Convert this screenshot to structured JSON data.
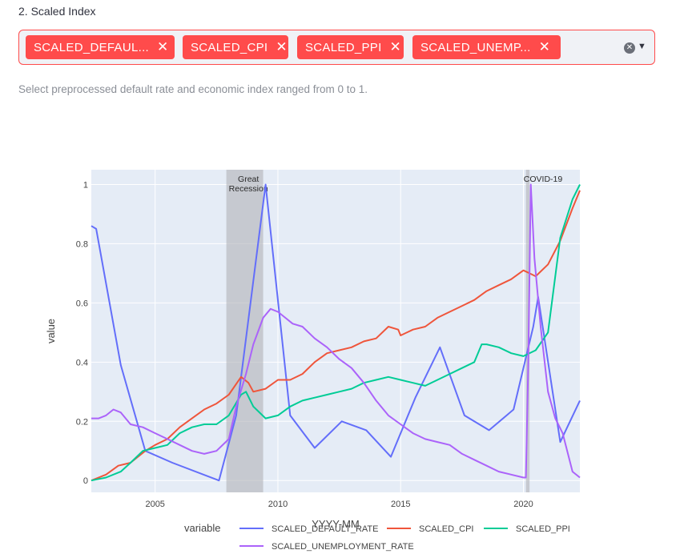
{
  "section_label": "2. Scaled Index",
  "multiselect": {
    "chips": [
      {
        "label": "SCALED_DEFAUL..."
      },
      {
        "label": "SCALED_CPI"
      },
      {
        "label": "SCALED_PPI"
      },
      {
        "label": "SCALED_UNEMP..."
      }
    ],
    "remove_glyph": "✕",
    "clear_glyph": "✕",
    "arrow_glyph": "▼"
  },
  "help_text": "Select preprocessed default rate and economic index ranged from 0 to 1.",
  "colors": {
    "accent": "#ff4b4b",
    "plot_bg": "#e5ecf6",
    "default_rate": "#636efa",
    "cpi": "#ef553b",
    "ppi": "#00cc96",
    "unemployment": "#ab63fa",
    "recession_band": "#b0b3b8"
  },
  "chart_data": {
    "type": "line",
    "xlabel": "YYYY-MM",
    "ylabel": "value",
    "x_ticks": [
      "2005",
      "2010",
      "2015",
      "2020"
    ],
    "y_ticks": [
      "0",
      "0.2",
      "0.4",
      "0.6",
      "0.8",
      "1"
    ],
    "xlim": [
      2002.4,
      2022.3
    ],
    "ylim": [
      -0.04,
      1.05
    ],
    "grid": true,
    "legend_title": "variable",
    "legend_position": "bottom",
    "annotations": [
      {
        "text": "Great\nRecession",
        "x": 2008.8
      },
      {
        "text": "COVID-19",
        "x": 2020.8
      }
    ],
    "bands": [
      {
        "from": 2007.9,
        "to": 2009.4
      },
      {
        "from": 2020.1,
        "to": 2020.25
      }
    ],
    "series": [
      {
        "name": "SCALED_DEFAULT_RATE",
        "color_key": "default_rate",
        "points": [
          [
            2002.4,
            0.86
          ],
          [
            2002.6,
            0.85
          ],
          [
            2003.6,
            0.39
          ],
          [
            2004.6,
            0.1
          ],
          [
            2005.7,
            0.06
          ],
          [
            2007.6,
            0.0
          ],
          [
            2008.3,
            0.22
          ],
          [
            2009.5,
            1.0
          ],
          [
            2010.5,
            0.22
          ],
          [
            2011.5,
            0.11
          ],
          [
            2012.6,
            0.2
          ],
          [
            2013.6,
            0.17
          ],
          [
            2014.6,
            0.08
          ],
          [
            2015.6,
            0.28
          ],
          [
            2016.6,
            0.45
          ],
          [
            2017.6,
            0.22
          ],
          [
            2018.6,
            0.17
          ],
          [
            2019.6,
            0.24
          ],
          [
            2020.4,
            0.52
          ],
          [
            2020.6,
            0.62
          ],
          [
            2021.5,
            0.13
          ],
          [
            2022.3,
            0.27
          ]
        ]
      },
      {
        "name": "SCALED_CPI",
        "color_key": "cpi",
        "points": [
          [
            2002.4,
            0.0
          ],
          [
            2003.0,
            0.02
          ],
          [
            2003.5,
            0.05
          ],
          [
            2004.0,
            0.06
          ],
          [
            2004.6,
            0.1
          ],
          [
            2005.0,
            0.12
          ],
          [
            2005.5,
            0.14
          ],
          [
            2006.0,
            0.18
          ],
          [
            2006.5,
            0.21
          ],
          [
            2007.0,
            0.24
          ],
          [
            2007.5,
            0.26
          ],
          [
            2008.0,
            0.29
          ],
          [
            2008.5,
            0.35
          ],
          [
            2008.8,
            0.33
          ],
          [
            2009.0,
            0.3
          ],
          [
            2009.5,
            0.31
          ],
          [
            2010.0,
            0.34
          ],
          [
            2010.5,
            0.34
          ],
          [
            2011.0,
            0.36
          ],
          [
            2011.5,
            0.4
          ],
          [
            2012.0,
            0.43
          ],
          [
            2012.5,
            0.44
          ],
          [
            2013.0,
            0.45
          ],
          [
            2013.5,
            0.47
          ],
          [
            2014.0,
            0.48
          ],
          [
            2014.5,
            0.52
          ],
          [
            2014.9,
            0.51
          ],
          [
            2015.0,
            0.49
          ],
          [
            2015.5,
            0.51
          ],
          [
            2016.0,
            0.52
          ],
          [
            2016.5,
            0.55
          ],
          [
            2017.0,
            0.57
          ],
          [
            2017.5,
            0.59
          ],
          [
            2018.0,
            0.61
          ],
          [
            2018.5,
            0.64
          ],
          [
            2019.0,
            0.66
          ],
          [
            2019.5,
            0.68
          ],
          [
            2020.0,
            0.71
          ],
          [
            2020.25,
            0.7
          ],
          [
            2020.5,
            0.69
          ],
          [
            2021.0,
            0.73
          ],
          [
            2021.5,
            0.81
          ],
          [
            2022.0,
            0.92
          ],
          [
            2022.3,
            0.98
          ]
        ]
      },
      {
        "name": "SCALED_PPI",
        "color_key": "ppi",
        "points": [
          [
            2002.4,
            0.0
          ],
          [
            2003.0,
            0.01
          ],
          [
            2003.6,
            0.03
          ],
          [
            2004.0,
            0.06
          ],
          [
            2004.5,
            0.1
          ],
          [
            2005.0,
            0.11
          ],
          [
            2005.5,
            0.12
          ],
          [
            2006.0,
            0.16
          ],
          [
            2006.5,
            0.18
          ],
          [
            2007.0,
            0.19
          ],
          [
            2007.5,
            0.19
          ],
          [
            2008.0,
            0.22
          ],
          [
            2008.5,
            0.29
          ],
          [
            2008.7,
            0.3
          ],
          [
            2009.0,
            0.25
          ],
          [
            2009.5,
            0.21
          ],
          [
            2010.0,
            0.22
          ],
          [
            2010.5,
            0.25
          ],
          [
            2011.0,
            0.27
          ],
          [
            2011.5,
            0.28
          ],
          [
            2012.0,
            0.29
          ],
          [
            2012.5,
            0.3
          ],
          [
            2013.0,
            0.31
          ],
          [
            2013.5,
            0.33
          ],
          [
            2014.0,
            0.34
          ],
          [
            2014.5,
            0.35
          ],
          [
            2015.0,
            0.34
          ],
          [
            2015.5,
            0.33
          ],
          [
            2016.0,
            0.32
          ],
          [
            2016.5,
            0.34
          ],
          [
            2017.0,
            0.36
          ],
          [
            2017.5,
            0.38
          ],
          [
            2018.0,
            0.4
          ],
          [
            2018.3,
            0.46
          ],
          [
            2018.5,
            0.46
          ],
          [
            2019.0,
            0.45
          ],
          [
            2019.5,
            0.43
          ],
          [
            2020.0,
            0.42
          ],
          [
            2020.5,
            0.44
          ],
          [
            2021.0,
            0.5
          ],
          [
            2021.5,
            0.82
          ],
          [
            2022.0,
            0.95
          ],
          [
            2022.3,
            1.0
          ]
        ]
      },
      {
        "name": "SCALED_UNEMPLOYMENT_RATE",
        "color_key": "unemployment",
        "points": [
          [
            2002.4,
            0.21
          ],
          [
            2002.7,
            0.21
          ],
          [
            2003.0,
            0.22
          ],
          [
            2003.3,
            0.24
          ],
          [
            2003.6,
            0.23
          ],
          [
            2004.0,
            0.19
          ],
          [
            2004.5,
            0.18
          ],
          [
            2005.0,
            0.16
          ],
          [
            2005.5,
            0.14
          ],
          [
            2006.0,
            0.12
          ],
          [
            2006.5,
            0.1
          ],
          [
            2007.0,
            0.09
          ],
          [
            2007.5,
            0.1
          ],
          [
            2008.0,
            0.14
          ],
          [
            2008.3,
            0.25
          ],
          [
            2008.7,
            0.36
          ],
          [
            2009.0,
            0.46
          ],
          [
            2009.4,
            0.55
          ],
          [
            2009.7,
            0.58
          ],
          [
            2010.0,
            0.57
          ],
          [
            2010.3,
            0.55
          ],
          [
            2010.6,
            0.53
          ],
          [
            2011.0,
            0.52
          ],
          [
            2011.5,
            0.48
          ],
          [
            2012.0,
            0.45
          ],
          [
            2012.5,
            0.41
          ],
          [
            2013.0,
            0.38
          ],
          [
            2013.5,
            0.33
          ],
          [
            2014.0,
            0.27
          ],
          [
            2014.5,
            0.22
          ],
          [
            2015.0,
            0.19
          ],
          [
            2015.5,
            0.16
          ],
          [
            2016.0,
            0.14
          ],
          [
            2016.5,
            0.13
          ],
          [
            2017.0,
            0.12
          ],
          [
            2017.5,
            0.09
          ],
          [
            2018.0,
            0.07
          ],
          [
            2018.5,
            0.05
          ],
          [
            2019.0,
            0.03
          ],
          [
            2019.5,
            0.02
          ],
          [
            2020.0,
            0.01
          ],
          [
            2020.1,
            0.01
          ],
          [
            2020.2,
            0.4
          ],
          [
            2020.3,
            1.0
          ],
          [
            2020.45,
            0.75
          ],
          [
            2020.7,
            0.52
          ],
          [
            2021.0,
            0.3
          ],
          [
            2021.3,
            0.21
          ],
          [
            2021.6,
            0.16
          ],
          [
            2022.0,
            0.03
          ],
          [
            2022.3,
            0.01
          ]
        ]
      }
    ]
  }
}
